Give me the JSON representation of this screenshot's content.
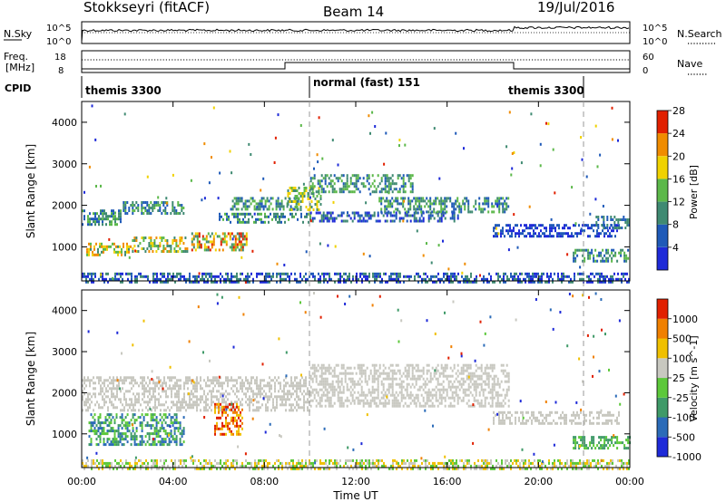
{
  "header": {
    "station": "Stokkseyri (fitACF)",
    "beam": "Beam 14",
    "date": "19/Jul/2016"
  },
  "noise_panel": {
    "left_label": "N.Sky",
    "right_label": "N.Search",
    "left_ticks": [
      "10^5",
      "10^0"
    ],
    "right_ticks": [
      "10^5",
      "10^0"
    ]
  },
  "freq_panel": {
    "left_label": "Freq.",
    "left_unit": "[MHz]",
    "right_label": "Nave",
    "left_ticks": [
      "18",
      "8"
    ],
    "right_ticks": [
      "60",
      "0"
    ]
  },
  "cpid": {
    "label": "CPID",
    "segments": [
      {
        "label": "themis 3300",
        "start_h": 0,
        "end_h": 10.0
      },
      {
        "label": "normal (fast) 151",
        "start_h": 10.0,
        "end_h": 22.0
      },
      {
        "label": "themis 3300",
        "start_h": 22.0,
        "end_h": 24
      }
    ]
  },
  "chart_data": [
    {
      "type": "heatmap",
      "quantity": "power",
      "ylabel": "Slant Range [km]",
      "ylim": [
        180,
        4500
      ],
      "yticks": [
        "1000",
        "2000",
        "3000",
        "4000"
      ],
      "xlim_h": [
        0,
        24
      ],
      "colorbar": {
        "label": "Power [dB]",
        "ticks": [
          "4",
          "8",
          "12",
          "16",
          "20",
          "24",
          "28"
        ],
        "colors": [
          "#1e2ad8",
          "#1f5ab8",
          "#3f8a72",
          "#5cb84a",
          "#f0d200",
          "#f08c00",
          "#e12000"
        ]
      },
      "regions": [
        {
          "t": [
            0.0,
            1.7
          ],
          "r": [
            1560,
            1900
          ],
          "level": [
            1,
            3
          ]
        },
        {
          "t": [
            0.2,
            2.2
          ],
          "r": [
            800,
            1100
          ],
          "level": [
            2,
            5
          ]
        },
        {
          "t": [
            1.8,
            4.5
          ],
          "r": [
            1800,
            2100
          ],
          "level": [
            1,
            3
          ]
        },
        {
          "t": [
            2.2,
            4.6
          ],
          "r": [
            900,
            1250
          ],
          "level": [
            2,
            5
          ]
        },
        {
          "t": [
            4.8,
            7.2
          ],
          "r": [
            900,
            1350
          ],
          "level": [
            2,
            6
          ]
        },
        {
          "t": [
            6.0,
            10.0
          ],
          "r": [
            1620,
            1820
          ],
          "level": [
            1,
            3
          ]
        },
        {
          "t": [
            6.5,
            9.5
          ],
          "r": [
            1900,
            2200
          ],
          "level": [
            1,
            3
          ]
        },
        {
          "t": [
            9.0,
            10.5
          ],
          "r": [
            1900,
            2450
          ],
          "level": [
            2,
            4
          ]
        },
        {
          "t": [
            10.0,
            14.5
          ],
          "r": [
            2300,
            2750
          ],
          "level": [
            1,
            3
          ]
        },
        {
          "t": [
            10.0,
            16.5
          ],
          "r": [
            1650,
            1850
          ],
          "level": [
            0,
            2
          ]
        },
        {
          "t": [
            13.0,
            18.7
          ],
          "r": [
            1850,
            2200
          ],
          "level": [
            1,
            3
          ]
        },
        {
          "t": [
            18.0,
            23.5
          ],
          "r": [
            1250,
            1550
          ],
          "level": [
            0,
            1
          ]
        },
        {
          "t": [
            21.5,
            24.0
          ],
          "r": [
            650,
            950
          ],
          "level": [
            1,
            3
          ]
        },
        {
          "t": [
            22.5,
            24.0
          ],
          "r": [
            1450,
            1750
          ],
          "level": [
            1,
            2
          ]
        },
        {
          "t": [
            0.0,
            24.0
          ],
          "r": [
            180,
            380
          ],
          "level": [
            0,
            2
          ]
        }
      ]
    },
    {
      "type": "heatmap",
      "quantity": "velocity",
      "ylabel": "Slant Range [km]",
      "ylim": [
        180,
        4500
      ],
      "yticks": [
        "1000",
        "2000",
        "3000",
        "4000"
      ],
      "xlim_h": [
        0,
        24
      ],
      "xticks": [
        "00:00",
        "04:00",
        "08:00",
        "12:00",
        "16:00",
        "20:00",
        "00:00"
      ],
      "xlabel": "Time UT",
      "colorbar": {
        "label": "Velocity [m s^-1]",
        "ticks": [
          "1000",
          "500",
          "100",
          "25",
          "-25",
          "-100",
          "-500",
          "-1000"
        ],
        "colors": [
          "#1e2ad8",
          "#2b6bb8",
          "#3f9a68",
          "#5cc83a",
          "#c8c8c0",
          "#f0c000",
          "#f08000",
          "#e12000"
        ]
      },
      "regions": [
        {
          "t": [
            0.0,
            10.0
          ],
          "r": [
            1600,
            2400
          ],
          "level": [
            4,
            4
          ]
        },
        {
          "t": [
            10.0,
            18.7
          ],
          "r": [
            1650,
            2700
          ],
          "level": [
            4,
            4
          ]
        },
        {
          "t": [
            18.0,
            23.5
          ],
          "r": [
            1250,
            1550
          ],
          "level": [
            4,
            4
          ]
        },
        {
          "t": [
            0.3,
            4.5
          ],
          "r": [
            750,
            1500
          ],
          "level": [
            1,
            3
          ]
        },
        {
          "t": [
            5.8,
            7.0
          ],
          "r": [
            1000,
            1750
          ],
          "level": [
            5,
            7
          ]
        },
        {
          "t": [
            21.5,
            24.0
          ],
          "r": [
            650,
            950
          ],
          "level": [
            2,
            3
          ]
        },
        {
          "t": [
            0.0,
            24.0
          ],
          "r": [
            180,
            380
          ],
          "level": [
            3,
            5
          ]
        }
      ]
    }
  ]
}
